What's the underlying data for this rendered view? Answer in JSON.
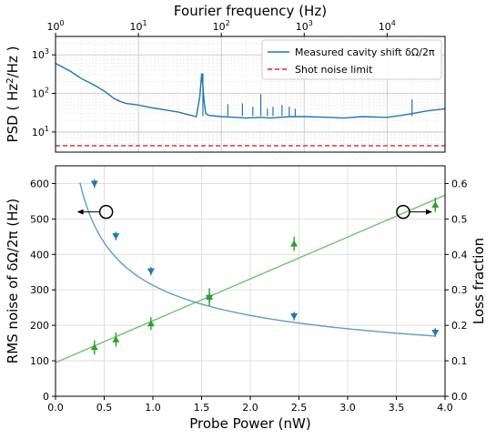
{
  "colors": {
    "blue": "#1f77b4",
    "blue_fit": "#5b9ec9",
    "green": "#2ca02c",
    "green_fit": "#74c274",
    "red": "#d62728",
    "grid": "#d9d9d9"
  },
  "chart_data": [
    {
      "type": "line",
      "xscale": "log",
      "yscale": "log",
      "xlabel": "Fourier frequency (Hz)",
      "ylabel": "PSD ( Hz²/Hz )",
      "xlabel_parts": {
        "main": "PSD ( Hz",
        "sup": "2",
        "tail": "/Hz )"
      },
      "xlim": [
        1,
        50000
      ],
      "ylim": [
        3,
        3000
      ],
      "x_ticks": [
        {
          "base": "10",
          "exp": "0",
          "value": 1
        },
        {
          "base": "10",
          "exp": "1",
          "value": 10
        },
        {
          "base": "10",
          "exp": "2",
          "value": 100
        },
        {
          "base": "10",
          "exp": "3",
          "value": 1000
        },
        {
          "base": "10",
          "exp": "4",
          "value": 10000
        }
      ],
      "y_ticks": [
        {
          "base": "10",
          "exp": "1",
          "value": 10
        },
        {
          "base": "10",
          "exp": "2",
          "value": 100
        },
        {
          "base": "10",
          "exp": "3",
          "value": 1000
        }
      ],
      "grid": true,
      "legend_position": "top-right",
      "series": [
        {
          "name": "Measured cavity shift δΩ/2π",
          "style": "solid",
          "x": [
            1,
            1.5,
            2,
            3,
            4,
            5,
            6,
            7,
            10,
            15,
            20,
            30,
            40,
            50,
            55,
            58,
            60,
            62,
            65,
            70,
            100,
            150,
            200,
            300,
            400,
            500,
            700,
            1000,
            2000,
            3000,
            5000,
            10000,
            15000,
            20000,
            30000,
            50000
          ],
          "y": [
            600,
            380,
            250,
            160,
            110,
            75,
            62,
            55,
            50,
            42,
            38,
            33,
            28,
            25,
            80,
            330,
            150,
            60,
            30,
            27,
            25,
            24,
            23,
            24,
            23,
            24,
            25,
            25,
            24,
            23,
            25,
            24,
            27,
            30,
            35,
            40
          ]
        },
        {
          "name": "Shot noise limit",
          "style": "dashed",
          "x": [
            1,
            50000
          ],
          "y": [
            4.4,
            4.4
          ]
        }
      ],
      "spikes": [
        {
          "x": 60,
          "y": 330
        },
        {
          "x": 120,
          "y": 52
        },
        {
          "x": 180,
          "y": 55
        },
        {
          "x": 240,
          "y": 45
        },
        {
          "x": 300,
          "y": 95
        },
        {
          "x": 360,
          "y": 40
        },
        {
          "x": 420,
          "y": 45
        },
        {
          "x": 540,
          "y": 50
        },
        {
          "x": 660,
          "y": 45
        },
        {
          "x": 780,
          "y": 40
        },
        {
          "x": 20000,
          "y": 70
        }
      ]
    },
    {
      "type": "scatter",
      "xlabel": "Probe Power (nW)",
      "ylabel_left": "RMS noise of δΩ/2π (Hz)",
      "ylabel_right": "Loss fraction",
      "xlim": [
        0,
        4
      ],
      "ylim_left": [
        0,
        650
      ],
      "ylim_right": [
        0,
        0.65
      ],
      "x_ticks": [
        "0.0",
        "0.5",
        "1.0",
        "1.5",
        "2.0",
        "2.5",
        "3.0",
        "3.5",
        "4.0"
      ],
      "y_ticks_left": [
        "0",
        "100",
        "200",
        "300",
        "400",
        "500",
        "600"
      ],
      "y_ticks_right": [
        "0.0",
        "0.1",
        "0.2",
        "0.3",
        "0.4",
        "0.5",
        "0.6"
      ],
      "grid": true,
      "series": [
        {
          "name": "RMS noise",
          "axis": "left",
          "marker": "triangle-down",
          "x": [
            0.4,
            0.62,
            0.98,
            1.58,
            2.45,
            3.9
          ],
          "y": [
            600,
            452,
            353,
            278,
            226,
            180
          ],
          "err": [
            12,
            12,
            12,
            14,
            12,
            12
          ],
          "fit": {
            "model": "a/sqrt(x)+b",
            "a": 290,
            "b": 23,
            "x_from": 0.25,
            "x_to": 3.9
          }
        },
        {
          "name": "Loss fraction",
          "axis": "right",
          "marker": "triangle-up",
          "x": [
            0.4,
            0.62,
            0.98,
            1.58,
            2.45,
            3.9
          ],
          "y": [
            0.138,
            0.16,
            0.205,
            0.28,
            0.43,
            0.54
          ],
          "err": [
            0.02,
            0.02,
            0.018,
            0.025,
            0.02,
            0.02
          ],
          "fit": {
            "model": "linear",
            "slope": 0.118,
            "intercept": 0.095,
            "x_from": 0,
            "x_to": 4
          }
        }
      ],
      "annotations": [
        {
          "kind": "circle-arrow",
          "axis": "left",
          "x": 0.52,
          "y": 520,
          "direction": "left"
        },
        {
          "kind": "circle-arrow",
          "axis": "left",
          "x": 3.57,
          "y": 520,
          "direction": "right"
        }
      ]
    }
  ]
}
